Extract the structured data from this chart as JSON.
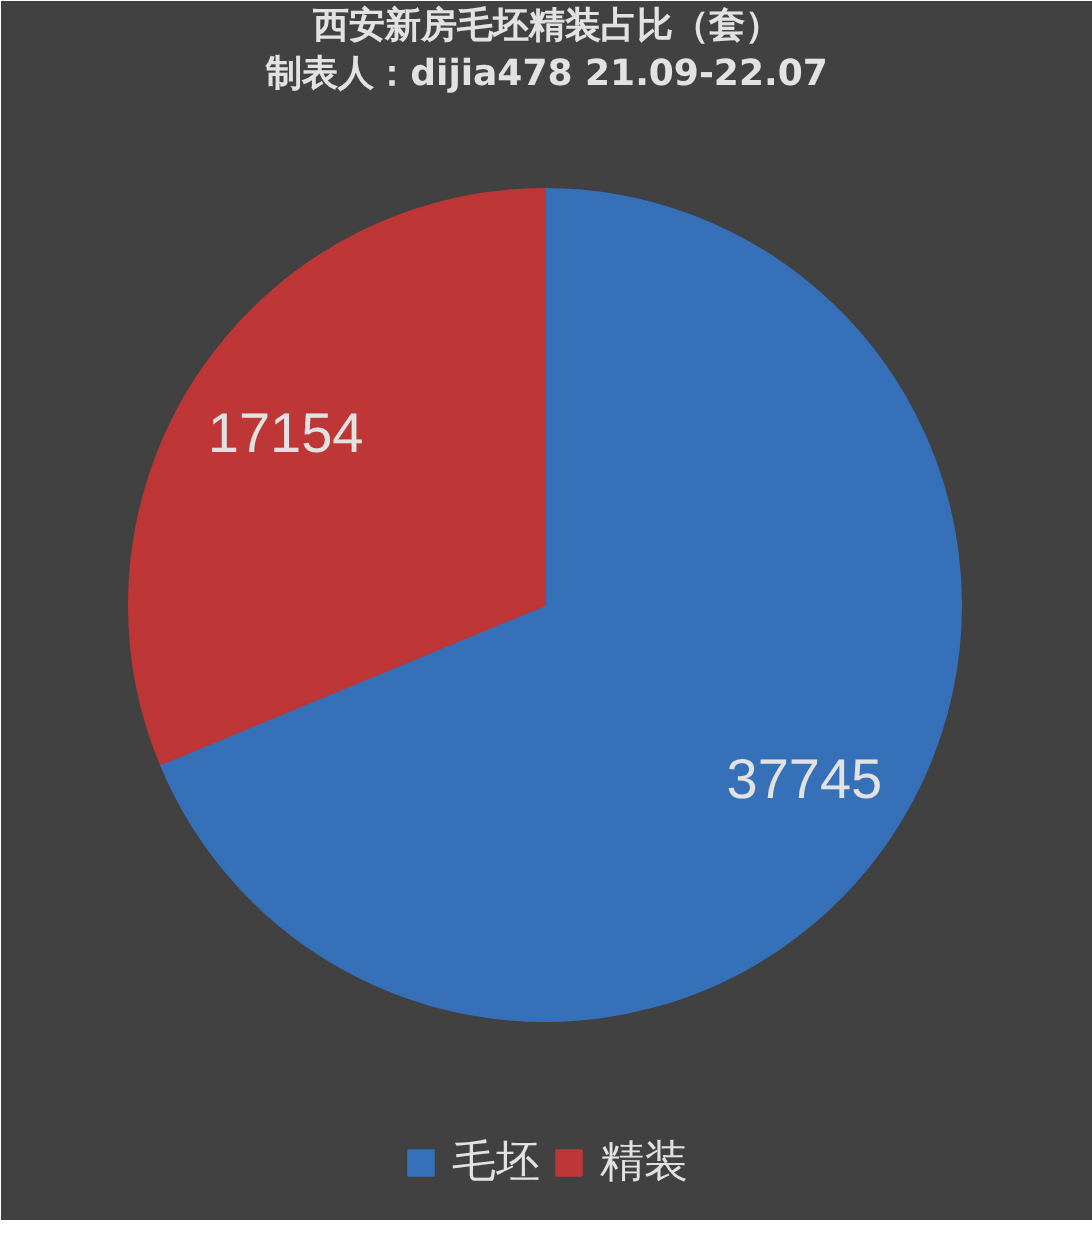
{
  "chart_data": {
    "type": "pie",
    "title": "西安新房毛坯精装占比（套）",
    "subtitle": "制表人：dijia478 21.09-22.07",
    "categories": [
      "毛坯",
      "精装"
    ],
    "values": [
      37745,
      17154
    ],
    "colors": [
      "#3670b8",
      "#be3636"
    ],
    "data_labels": true,
    "legend": "bottom"
  }
}
